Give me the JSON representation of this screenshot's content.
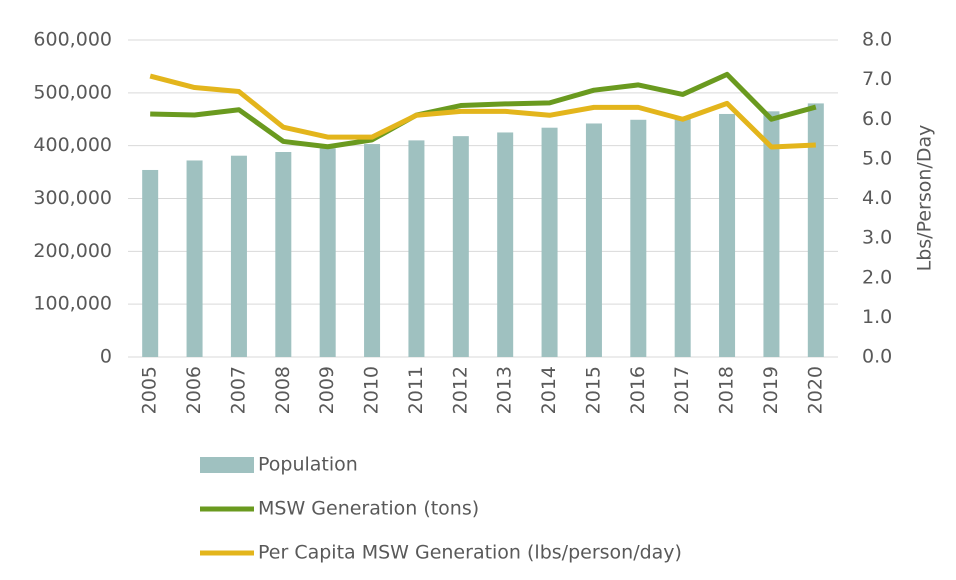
{
  "chart_data": {
    "type": "combo",
    "categories": [
      "2005",
      "2006",
      "2007",
      "2008",
      "2009",
      "2010",
      "2011",
      "2012",
      "2013",
      "2014",
      "2015",
      "2016",
      "2017",
      "2018",
      "2019",
      "2020"
    ],
    "series": [
      {
        "name": "Population",
        "type": "bar",
        "color": "#9fc1c0",
        "values": [
          354000,
          372000,
          381000,
          388000,
          395000,
          403000,
          410000,
          418000,
          425000,
          434000,
          442000,
          449000,
          455000,
          460000,
          465000,
          480000
        ]
      },
      {
        "name": "MSW Generation (tons)",
        "type": "line",
        "color": "#6a9a1f",
        "values": [
          460000,
          458000,
          468000,
          408000,
          398000,
          411000,
          458000,
          476000,
          479000,
          481000,
          505000,
          515000,
          497000,
          535000,
          450000,
          473000
        ]
      },
      {
        "name": "Per Capita MSW Generation (lbs/person/day)",
        "type": "line",
        "axis": "y2",
        "color": "#e3b51c",
        "values": [
          7.09,
          6.8,
          6.7,
          5.8,
          5.55,
          5.55,
          6.1,
          6.2,
          6.2,
          6.1,
          6.3,
          6.3,
          6.0,
          6.4,
          5.3,
          5.35
        ]
      }
    ],
    "ylim": [
      0,
      600000
    ],
    "yticks": [
      0,
      {
        "value": 100000,
        "label": "100,000"
      },
      {
        "value": 200000,
        "label": "200,000"
      },
      {
        "value": 300000,
        "label": "300,000"
      },
      {
        "value": 400000,
        "label": "400,000"
      },
      {
        "value": 500000,
        "label": "500,000"
      },
      {
        "value": 600000,
        "label": "600,000"
      }
    ],
    "y2lim": [
      0,
      8
    ],
    "y2ticks": [
      {
        "value": 0,
        "label": "0.0"
      },
      {
        "value": 1,
        "label": "1.0"
      },
      {
        "value": 2,
        "label": "2.0"
      },
      {
        "value": 3,
        "label": "3.0"
      },
      {
        "value": 4,
        "label": "4.0"
      },
      {
        "value": 5,
        "label": "5.0"
      },
      {
        "value": 6,
        "label": "6.0"
      },
      {
        "value": 7,
        "label": "7.0"
      },
      {
        "value": 8,
        "label": "8.0"
      }
    ],
    "y2label": "Lbs/Person/Day",
    "grid": true,
    "legend": "bottom"
  }
}
